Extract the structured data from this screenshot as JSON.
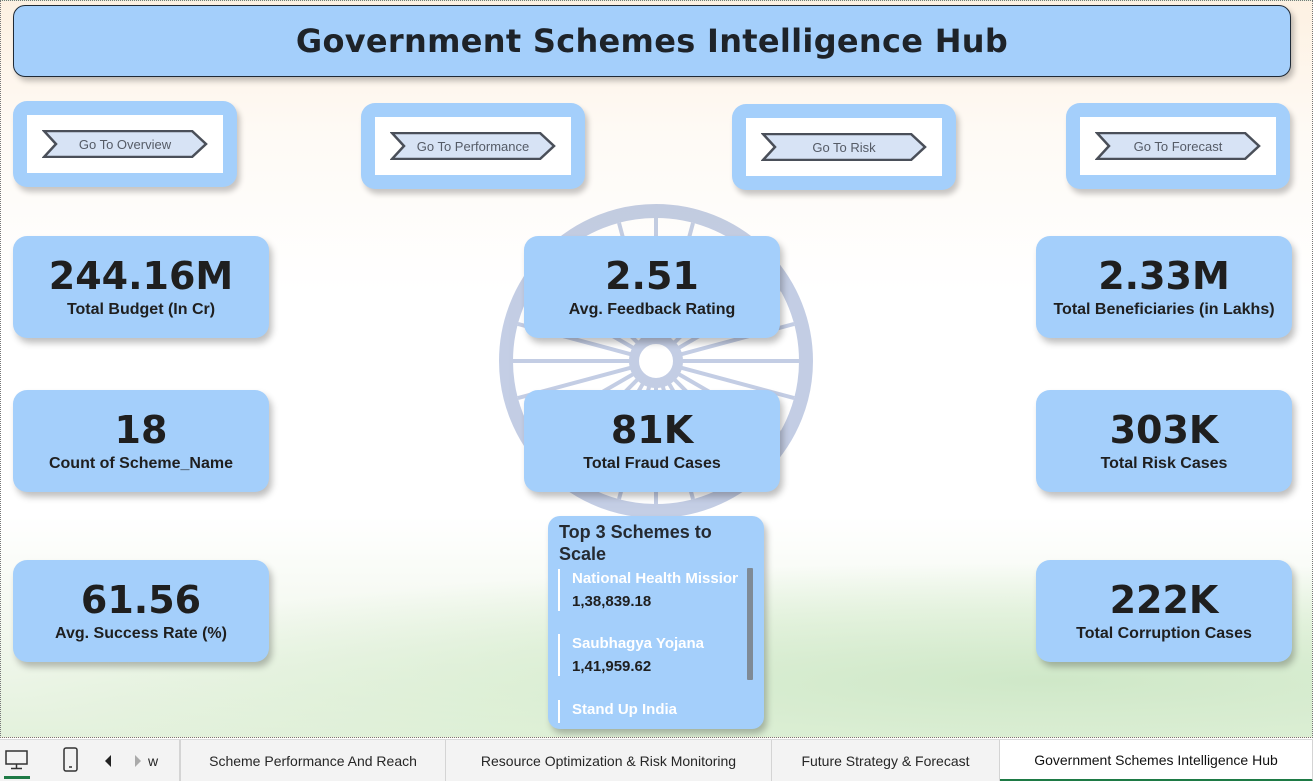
{
  "title": "Government Schemes Intelligence Hub",
  "nav_buttons": [
    {
      "label": "Go To Overview"
    },
    {
      "label": "Go To Performance"
    },
    {
      "label": "Go To Risk"
    },
    {
      "label": "Go To Forecast"
    }
  ],
  "kpis": {
    "total_budget": {
      "value": "244.16M",
      "label": "Total Budget (In Cr)"
    },
    "avg_feedback": {
      "value": "2.51",
      "label": "Avg. Feedback Rating"
    },
    "total_beneficiaries": {
      "value": "2.33M",
      "label": "Total Beneficiaries (in Lakhs)"
    },
    "scheme_count": {
      "value": "18",
      "label": "Count of Scheme_Name"
    },
    "fraud_cases": {
      "value": "81K",
      "label": "Total Fraud Cases"
    },
    "risk_cases": {
      "value": "303K",
      "label": "Total Risk Cases"
    },
    "success_rate": {
      "value": "61.56",
      "label": "Avg. Success Rate (%)"
    },
    "corruption_cases": {
      "value": "222K",
      "label": "Total Corruption Cases"
    }
  },
  "top_schemes": {
    "title": "Top 3 Schemes to Scale",
    "items": [
      {
        "name": "National Health Mission",
        "value": "1,38,839.18"
      },
      {
        "name": "Saubhagya Yojana",
        "value": "1,41,959.62"
      },
      {
        "name": "Stand Up India",
        "value": ""
      }
    ]
  },
  "tabs": {
    "partial_prev": "w",
    "items": [
      {
        "label": "Scheme Performance And Reach"
      },
      {
        "label": "Resource Optimization & Risk Monitoring"
      },
      {
        "label": "Future Strategy & Forecast"
      },
      {
        "label": "Government Schemes Intelligence Hub"
      }
    ],
    "active_index": 3
  },
  "colors": {
    "card": "#a4cffb",
    "title_text": "#1e2329",
    "active_tab_underline": "#1e7a45"
  },
  "icons": [
    "desktop-view-icon",
    "phone-view-icon",
    "prev-page-icon",
    "next-page-icon",
    "ashoka-chakra-watermark"
  ]
}
